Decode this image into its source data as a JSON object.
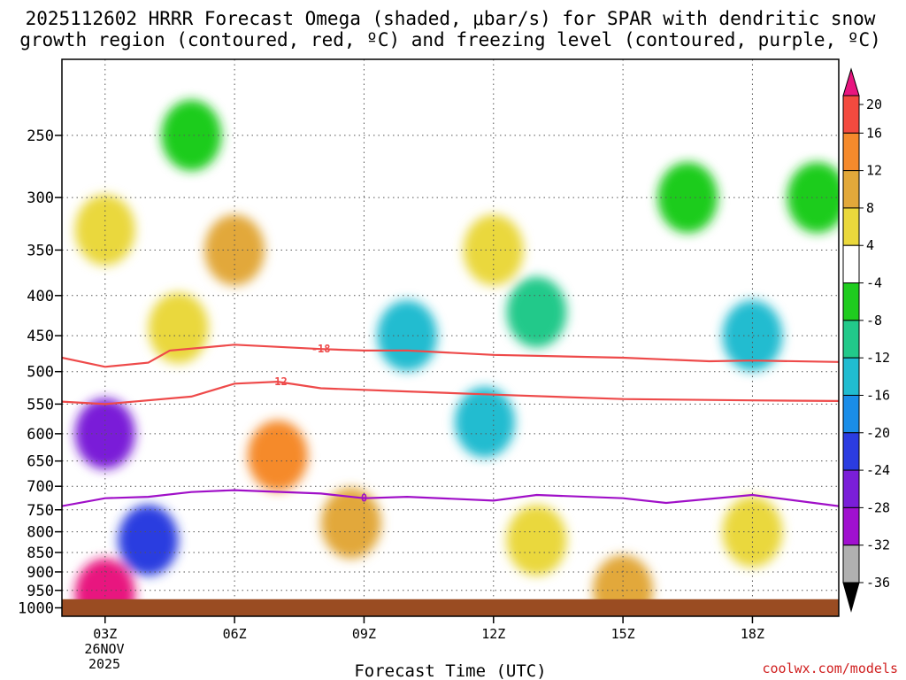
{
  "chart_data": {
    "type": "heatmap",
    "title": "2025112602 HRRR Forecast Omega (shaded, μbar/s) for SPAR with dendritic snow",
    "subtitle": "growth region (contoured, red, ºC) and freezing level (contoured, purple, ºC)",
    "xlabel": "Forecast Time (UTC)",
    "credit": "coolwx.com/models",
    "date_label": [
      "26NOV",
      "2025"
    ],
    "x_ticks": [
      {
        "label": "03Z",
        "hour": 3
      },
      {
        "label": "06Z",
        "hour": 6
      },
      {
        "label": "09Z",
        "hour": 9
      },
      {
        "label": "12Z",
        "hour": 12
      },
      {
        "label": "15Z",
        "hour": 15
      },
      {
        "label": "18Z",
        "hour": 18
      }
    ],
    "xlim_hours": [
      2,
      20
    ],
    "y_ticks": [
      250,
      300,
      350,
      400,
      450,
      500,
      550,
      600,
      650,
      700,
      750,
      800,
      850,
      900,
      950,
      1000
    ],
    "ylim_hpa": [
      200,
      1025
    ],
    "y_axis": "log pressure, inverted",
    "surface_hpa": 975,
    "grid": "dotted",
    "colorbar": {
      "labels": [
        "20",
        "16",
        "12",
        "8",
        "4",
        "-4",
        "-8",
        "-12",
        "-16",
        "-20",
        "-24",
        "-28",
        "-32",
        "-36"
      ],
      "colors": [
        "#e8157f",
        "#f34a3f",
        "#f58a2c",
        "#e2a83a",
        "#ead83c",
        "#ffffff",
        "#1fcc1f",
        "#22c98a",
        "#20bcd0",
        "#1a8de8",
        "#2b3ce0",
        "#7a1ed8",
        "#a010cf",
        "#b0b0b0",
        "#000000"
      ]
    },
    "omega_cells": [
      {
        "hour": 3.0,
        "p": 330,
        "value": 6
      },
      {
        "hour": 3.0,
        "p": 600,
        "value": -28
      },
      {
        "hour": 3.0,
        "p": 960,
        "value": 20
      },
      {
        "hour": 4.0,
        "p": 820,
        "value": -24
      },
      {
        "hour": 4.7,
        "p": 440,
        "value": 6
      },
      {
        "hour": 5.0,
        "p": 250,
        "value": -8
      },
      {
        "hour": 6.0,
        "p": 350,
        "value": 10
      },
      {
        "hour": 7.0,
        "p": 640,
        "value": 12
      },
      {
        "hour": 8.7,
        "p": 780,
        "value": 8
      },
      {
        "hour": 10.0,
        "p": 450,
        "value": -14
      },
      {
        "hour": 11.8,
        "p": 580,
        "value": -14
      },
      {
        "hour": 12.0,
        "p": 350,
        "value": 6
      },
      {
        "hour": 13.0,
        "p": 420,
        "value": -12
      },
      {
        "hour": 13.0,
        "p": 820,
        "value": 6
      },
      {
        "hour": 15.0,
        "p": 950,
        "value": 10
      },
      {
        "hour": 16.5,
        "p": 300,
        "value": -8
      },
      {
        "hour": 18.0,
        "p": 450,
        "value": -14
      },
      {
        "hour": 18.0,
        "p": 800,
        "value": 6
      },
      {
        "hour": 19.5,
        "p": 300,
        "value": -8
      }
    ],
    "contours": [
      {
        "name": "-18",
        "color": "#ee4a4a",
        "label": "-18",
        "points": [
          [
            2,
            480
          ],
          [
            3,
            493
          ],
          [
            4,
            487
          ],
          [
            4.5,
            470
          ],
          [
            6,
            462
          ],
          [
            8,
            468
          ],
          [
            9,
            470
          ],
          [
            10,
            470
          ],
          [
            12,
            476
          ],
          [
            15,
            480
          ],
          [
            17,
            485
          ],
          [
            18,
            484
          ],
          [
            20,
            486
          ]
        ]
      },
      {
        "name": "-12",
        "color": "#ee4a4a",
        "label": "-12",
        "points": [
          [
            2,
            546
          ],
          [
            3,
            550
          ],
          [
            5,
            538
          ],
          [
            6,
            518
          ],
          [
            7,
            515
          ],
          [
            8,
            525
          ],
          [
            10,
            530
          ],
          [
            12,
            535
          ],
          [
            15,
            542
          ],
          [
            18,
            544
          ],
          [
            20,
            545
          ]
        ]
      },
      {
        "name": "0",
        "color": "#a010c8",
        "label": "0",
        "points": [
          [
            2,
            742
          ],
          [
            3,
            725
          ],
          [
            4,
            722
          ],
          [
            5,
            712
          ],
          [
            6,
            708
          ],
          [
            8,
            715
          ],
          [
            9,
            725
          ],
          [
            10,
            722
          ],
          [
            12,
            730
          ],
          [
            13,
            718
          ],
          [
            15,
            725
          ],
          [
            16,
            735
          ],
          [
            18,
            718
          ],
          [
            20,
            742
          ]
        ]
      }
    ]
  }
}
